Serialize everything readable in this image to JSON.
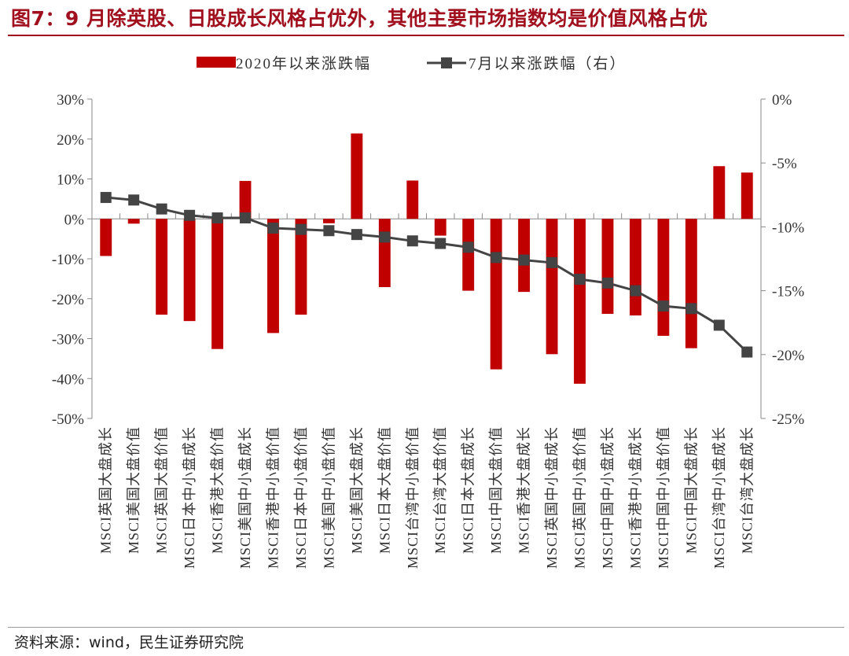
{
  "title": "图7：9 月除英股、日股成长风格占优外，其他主要市场指数均是价值风格占优",
  "source": "资料来源：wind，民生证券研究院",
  "colors": {
    "bar": "#c00000",
    "line": "#444444",
    "title": "#a0101e"
  },
  "chart_data": {
    "type": "bar",
    "categories": [
      "MSCI英国大盘成长",
      "MSCI美国大盘价值",
      "MSCI英国大盘价值",
      "MSCI日本中小盘成长",
      "MSCI香港大盘价值",
      "MSCI美国中小盘成长",
      "MSCI香港中小盘价值",
      "MSCI日本中小盘价值",
      "MSCI美国中小盘价值",
      "MSCI美国大盘成长",
      "MSCI日本大盘价值",
      "MSCI台湾中小盘价值",
      "MSCI台湾大盘价值",
      "MSCI日本大盘成长",
      "MSCI中国大盘价值",
      "MSCI香港大盘成长",
      "MSCI英国中小盘成长",
      "MSCI英国中小盘价值",
      "MSCI中国中小盘成长",
      "MSCI香港中小盘成长",
      "MSCI中国中小盘价值",
      "MSCI中国大盘成长",
      "MSCI台湾中小盘成长",
      "MSCI台湾大盘成长"
    ],
    "series": [
      {
        "name": "2020年以来涨跌幅",
        "type": "bar",
        "axis": "left",
        "values": [
          -9.3,
          -1.2,
          -24.0,
          -25.6,
          -32.6,
          9.5,
          -28.6,
          -24.0,
          -1.1,
          21.4,
          -17.1,
          9.6,
          -4.2,
          -18.0,
          -37.7,
          -18.3,
          -33.9,
          -41.3,
          -23.8,
          -24.2,
          -29.3,
          -32.4,
          13.2,
          11.6
        ]
      },
      {
        "name": "7月以来涨跌幅（右）",
        "type": "line",
        "axis": "right",
        "values": [
          -7.7,
          -7.9,
          -8.6,
          -9.1,
          -9.3,
          -9.3,
          -10.1,
          -10.2,
          -10.3,
          -10.6,
          -10.8,
          -11.1,
          -11.3,
          -11.6,
          -12.4,
          -12.6,
          -12.8,
          -14.1,
          -14.4,
          -15.0,
          -16.2,
          -16.4,
          -17.7,
          -19.8
        ]
      }
    ],
    "y_left": {
      "ticks": [
        "30%",
        "20%",
        "10%",
        "0%",
        "-10%",
        "-20%",
        "-30%",
        "-40%",
        "-50%"
      ],
      "min": -50,
      "max": 30
    },
    "y_right": {
      "ticks": [
        "0%",
        "-5%",
        "-10%",
        "-15%",
        "-20%",
        "-25%"
      ],
      "min": -25,
      "max": 0
    },
    "legend": [
      "2020年以来涨跌幅",
      "7月以来涨跌幅（右）"
    ],
    "legend_position": "top",
    "grid": false
  }
}
